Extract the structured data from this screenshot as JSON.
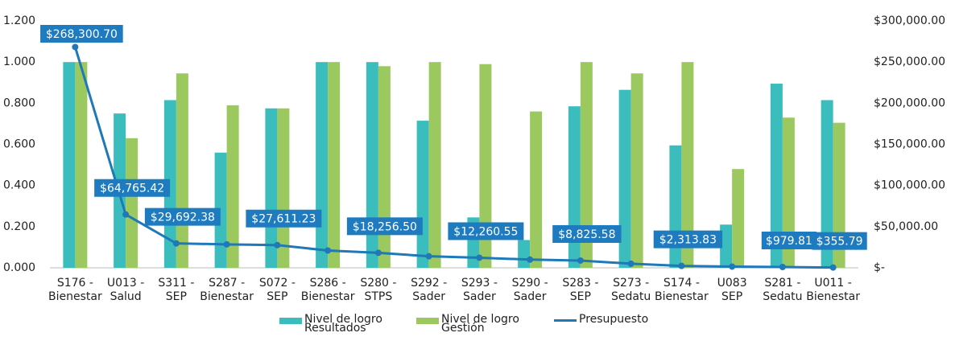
{
  "chart_data": {
    "type": "bar",
    "categories": [
      [
        "S176 -",
        "Bienestar"
      ],
      [
        "U013 -",
        "Salud"
      ],
      [
        "S311 -",
        "SEP"
      ],
      [
        "S287 -",
        "Bienestar"
      ],
      [
        "S072 -",
        "SEP"
      ],
      [
        "S286 -",
        "Bienestar"
      ],
      [
        "S280 -",
        "STPS"
      ],
      [
        "S292 -",
        "Sader"
      ],
      [
        "S293 -",
        "Sader"
      ],
      [
        "S290 -",
        "Sader"
      ],
      [
        "S283 -",
        "SEP"
      ],
      [
        "S273 -",
        "Sedatu"
      ],
      [
        "S174 -",
        "Bienestar"
      ],
      [
        "U083",
        "SEP"
      ],
      [
        "S281 -",
        "Sedatu"
      ],
      [
        "U011 -",
        "Bienestar"
      ]
    ],
    "series": [
      {
        "name": "Nivel de logro Resultados",
        "color": "#3cbdbd",
        "values": [
          1.0,
          0.75,
          0.815,
          0.56,
          0.775,
          1.0,
          1.0,
          0.715,
          0.245,
          0.135,
          0.785,
          0.865,
          0.595,
          0.21,
          0.895,
          0.815
        ]
      },
      {
        "name": "Nivel de logro Gestión",
        "color": "#9cc95f",
        "values": [
          1.0,
          0.63,
          0.945,
          0.79,
          0.775,
          1.0,
          0.98,
          1.0,
          0.99,
          0.76,
          1.0,
          0.945,
          1.0,
          0.48,
          0.73,
          0.705
        ]
      },
      {
        "name": "Presupuesto",
        "type": "line",
        "axis": "y2",
        "color": "#1f78b8",
        "values": [
          268300.7,
          64765.42,
          29692.38,
          28500,
          27611.23,
          21000,
          18256.5,
          14000,
          12260.55,
          10000,
          8825.58,
          5000,
          2313.83,
          1500,
          979.81,
          355.79
        ],
        "value_labels": [
          "$268,300.70",
          "$64,765.42",
          "$29,692.38",
          null,
          "$27,611.23",
          null,
          "$18,256.50",
          null,
          "$12,260.55",
          null,
          "$8,825.58",
          null,
          "$2,313.83",
          null,
          "$979.81",
          "$355.79"
        ]
      }
    ],
    "ylim": [
      0,
      1.2
    ],
    "yticks": [
      {
        "value": 0,
        "label": "0.000"
      },
      {
        "value": 0.2,
        "label": "0.200"
      },
      {
        "value": 0.4,
        "label": "0.400"
      },
      {
        "value": 0.6,
        "label": "0.600"
      },
      {
        "value": 0.8,
        "label": "0.800"
      },
      {
        "value": 1.0,
        "label": "1.000"
      },
      {
        "value": 1.2,
        "label": "1.200"
      }
    ],
    "y2lim": [
      0,
      300000
    ],
    "y2ticks": [
      {
        "value": 0,
        "label": "$-"
      },
      {
        "value": 50000,
        "label": "$50,000.00"
      },
      {
        "value": 100000,
        "label": "$100,000.00"
      },
      {
        "value": 150000,
        "label": "$150,000.00"
      },
      {
        "value": 200000,
        "label": "$200,000.00"
      },
      {
        "value": 250000,
        "label": "$250,000.00"
      },
      {
        "value": 300000,
        "label": "$300,000.00"
      }
    ],
    "legend": "bottom",
    "label_color": "#1f7bc0"
  }
}
